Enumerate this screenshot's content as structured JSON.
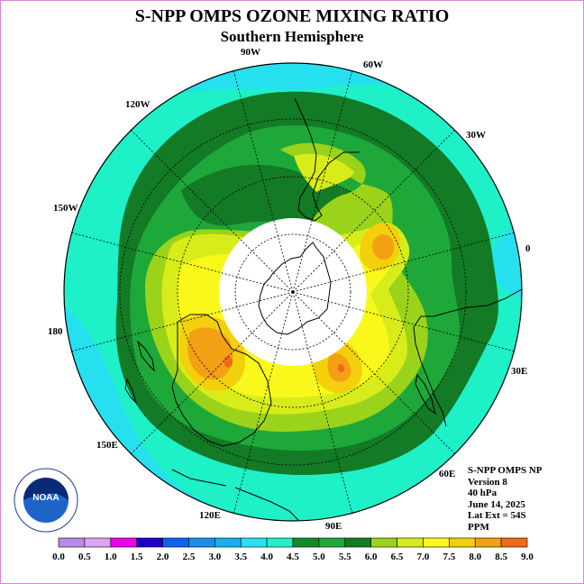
{
  "title": "S-NPP OMPS OZONE MIXING RATIO",
  "subtitle": "Southern Hemisphere",
  "longitude_labels": [
    "90W",
    "60W",
    "30W",
    "0",
    "30E",
    "60E",
    "90E",
    "120E",
    "150E",
    "180",
    "150W",
    "120W"
  ],
  "info": {
    "instrument": "S-NPP OMPS NP",
    "version": "Version 8",
    "level": "40 hPa",
    "date": "June 14, 2025",
    "lat_ext": "Lat Ext = 54S",
    "units": "PPM"
  },
  "logo": {
    "text": "NOAA",
    "ring_text": "NATIONAL OCEANIC AND ATMOSPHERIC ADMINISTRATION · U.S. DEPARTMENT OF COMMERCE"
  },
  "colorbar": {
    "ticks": [
      "0.0",
      "0.5",
      "1.0",
      "1.5",
      "2.0",
      "2.5",
      "3.0",
      "3.5",
      "4.0",
      "4.5",
      "5.0",
      "5.5",
      "6.0",
      "6.5",
      "7.0",
      "7.5",
      "8.0",
      "8.5",
      "9.0"
    ],
    "colors": [
      "#b98ae8",
      "#dea2f2",
      "#ee00ee",
      "#1e00cc",
      "#0a64f0",
      "#1890f0",
      "#16b0f0",
      "#26e0f0",
      "#1ef0c8",
      "#138a2a",
      "#1fa83a",
      "#137a26",
      "#9ad31a",
      "#d8ec1a",
      "#f8f81a",
      "#f4cf0c",
      "#f4a014",
      "#f06a18",
      "#e80c0c",
      "#8a5a3a"
    ]
  },
  "field_colors": {
    "teal": "#1ef0c8",
    "cyan": "#26e0f0",
    "green_dark": "#137a26",
    "green_mid": "#1fa83a",
    "lime": "#9ad31a",
    "yellow_green": "#d8ec1a",
    "yellow": "#f8f81a",
    "gold": "#f4cf0c",
    "orange": "#f4a014",
    "red_orange": "#f06a18"
  }
}
